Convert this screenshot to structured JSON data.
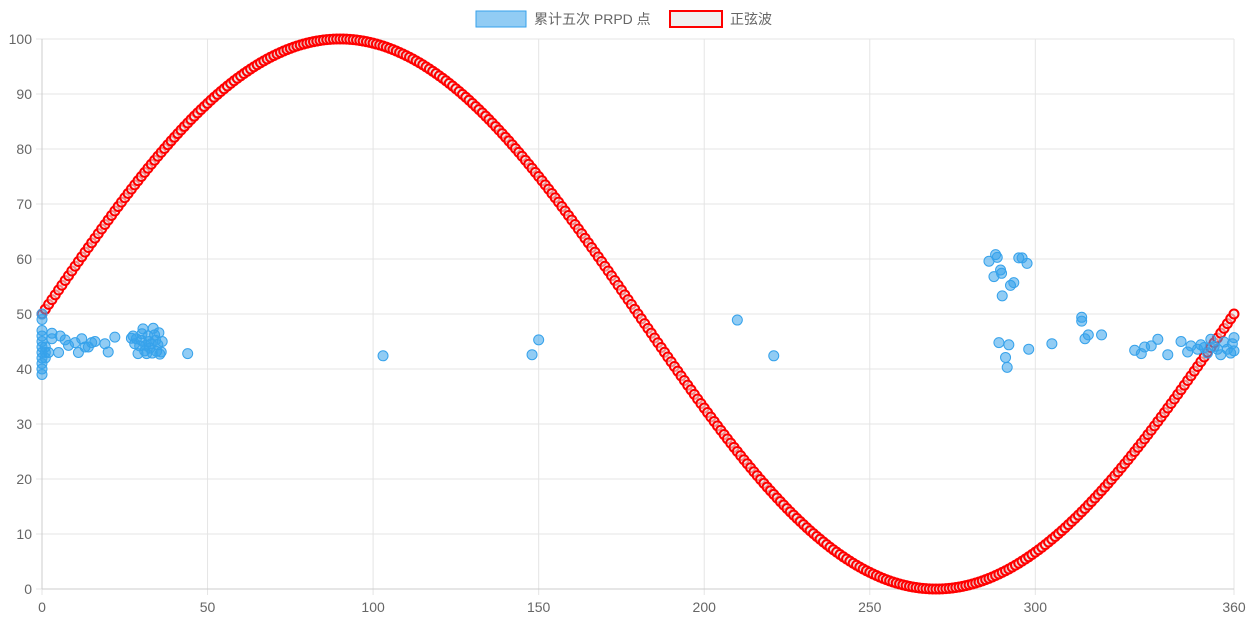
{
  "chart_data": {
    "type": "scatter",
    "xlim": [
      0,
      360
    ],
    "ylim": [
      0,
      100
    ],
    "x_ticks": [
      0,
      50,
      100,
      150,
      200,
      250,
      300,
      360
    ],
    "y_ticks": [
      0,
      10,
      20,
      30,
      40,
      50,
      60,
      70,
      80,
      90,
      100
    ],
    "grid": true,
    "legend_position": "top-center",
    "series": [
      {
        "name": "累计五次 PRPD 点",
        "kind": "scatter",
        "fill": "rgba(54,162,235,0.55)",
        "stroke": "#36a2eb",
        "points": [
          [
            0,
            39
          ],
          [
            0,
            40
          ],
          [
            0,
            41
          ],
          [
            0,
            42
          ],
          [
            0,
            43
          ],
          [
            0,
            44
          ],
          [
            0,
            45
          ],
          [
            0,
            46
          ],
          [
            0,
            47
          ],
          [
            0,
            49
          ],
          [
            0,
            50
          ],
          [
            1,
            42
          ],
          [
            1,
            43
          ],
          [
            1,
            44
          ],
          [
            2,
            43
          ],
          [
            3,
            45.5
          ],
          [
            3,
            46.5
          ],
          [
            5,
            43
          ],
          [
            5.5,
            46
          ],
          [
            7,
            45.3
          ],
          [
            8,
            44.3
          ],
          [
            10,
            44.8
          ],
          [
            11,
            43
          ],
          [
            12,
            45.5
          ],
          [
            13,
            44
          ],
          [
            14,
            44
          ],
          [
            15,
            44.8
          ],
          [
            16,
            45
          ],
          [
            19,
            44.6
          ],
          [
            20,
            43.1
          ],
          [
            22,
            45.8
          ],
          [
            27,
            45.6
          ],
          [
            27.5,
            46
          ],
          [
            28,
            44.6
          ],
          [
            28.5,
            45.5
          ],
          [
            29,
            42.8
          ],
          [
            29.5,
            44.2
          ],
          [
            30,
            45.2
          ],
          [
            30.2,
            46.4
          ],
          [
            30.5,
            47.3
          ],
          [
            31,
            43.3
          ],
          [
            31.3,
            44.3
          ],
          [
            31.6,
            42.8
          ],
          [
            32,
            46
          ],
          [
            32.3,
            45
          ],
          [
            32.6,
            43.8
          ],
          [
            33,
            44.6
          ],
          [
            33.3,
            42.9
          ],
          [
            33.6,
            47.4
          ],
          [
            34,
            46.2
          ],
          [
            34.3,
            45.2
          ],
          [
            34.6,
            43.2
          ],
          [
            35,
            44.4
          ],
          [
            35.3,
            46.6
          ],
          [
            35.6,
            42.7
          ],
          [
            36,
            43.1
          ],
          [
            36.3,
            45
          ],
          [
            44,
            42.8
          ],
          [
            103,
            42.4
          ],
          [
            148,
            42.6
          ],
          [
            150,
            45.3
          ],
          [
            210,
            48.9
          ],
          [
            221,
            42.4
          ],
          [
            286,
            59.6
          ],
          [
            287.5,
            56.8
          ],
          [
            288,
            60.8
          ],
          [
            288.5,
            60.3
          ],
          [
            289,
            44.8
          ],
          [
            289.5,
            58
          ],
          [
            289.8,
            57.4
          ],
          [
            290,
            53.3
          ],
          [
            291,
            42.1
          ],
          [
            291.5,
            40.3
          ],
          [
            292,
            44.4
          ],
          [
            292.5,
            55.2
          ],
          [
            293.5,
            55.7
          ],
          [
            295,
            60.2
          ],
          [
            296,
            60.2
          ],
          [
            297.5,
            59.2
          ],
          [
            298,
            43.6
          ],
          [
            305,
            44.6
          ],
          [
            314,
            49.4
          ],
          [
            314,
            48.7
          ],
          [
            315,
            45.5
          ],
          [
            316,
            46.2
          ],
          [
            320,
            46.2
          ],
          [
            330,
            43.4
          ],
          [
            332,
            42.8
          ],
          [
            333,
            44
          ],
          [
            335,
            44.2
          ],
          [
            337,
            45.4
          ],
          [
            340,
            42.6
          ],
          [
            344,
            45
          ],
          [
            346,
            43.1
          ],
          [
            347,
            44.2
          ],
          [
            349,
            43.6
          ],
          [
            350,
            44.4
          ],
          [
            351,
            43.9
          ],
          [
            352,
            42.9
          ],
          [
            353,
            45.4
          ],
          [
            354,
            44.1
          ],
          [
            355,
            43.6
          ],
          [
            356,
            42.6
          ],
          [
            357,
            44.9
          ],
          [
            358,
            43.6
          ],
          [
            359,
            42.9
          ],
          [
            359.5,
            44.6
          ],
          [
            360,
            45.7
          ],
          [
            360,
            43.3
          ]
        ]
      },
      {
        "name": "正弦波",
        "kind": "sine",
        "fill": "rgba(230,230,230,0.6)",
        "stroke": "#ff0000",
        "formula": "50 + 50*sin(x)",
        "x_range": [
          0,
          360
        ],
        "x_step": 1
      }
    ]
  }
}
